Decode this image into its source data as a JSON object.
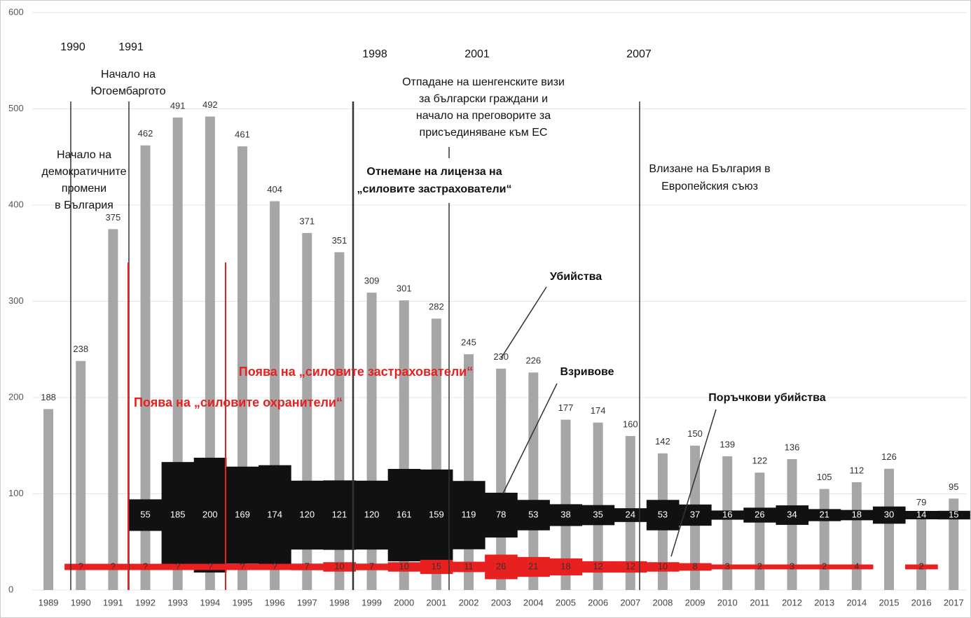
{
  "chart_data": {
    "type": "bar",
    "categories": [
      "1989",
      "1990",
      "1991",
      "1992",
      "1993",
      "1994",
      "1995",
      "1996",
      "1997",
      "1998",
      "1999",
      "2000",
      "2001",
      "2002",
      "2003",
      "2004",
      "2005",
      "2006",
      "2007",
      "2008",
      "2009",
      "2010",
      "2011",
      "2012",
      "2013",
      "2014",
      "2015",
      "2016",
      "2017"
    ],
    "series": [
      {
        "name": "Убийства",
        "color": "#a6a6a6",
        "values": [
          188,
          238,
          375,
          462,
          491,
          492,
          461,
          404,
          371,
          351,
          309,
          301,
          282,
          245,
          230,
          226,
          177,
          174,
          160,
          142,
          150,
          139,
          122,
          136,
          105,
          112,
          126,
          79,
          95
        ]
      },
      {
        "name": "Взривове",
        "color": "#111111",
        "values": [
          null,
          null,
          null,
          55,
          185,
          200,
          169,
          174,
          120,
          121,
          120,
          161,
          159,
          119,
          78,
          53,
          38,
          35,
          24,
          53,
          37,
          16,
          26,
          34,
          21,
          18,
          30,
          14,
          15
        ]
      },
      {
        "name": "Поръчкови убийства",
        "color": "#e8201f",
        "values": [
          null,
          null,
          null,
          null,
          null,
          null,
          null,
          null,
          7,
          10,
          7,
          10,
          15,
          11,
          26,
          21,
          18,
          12,
          12,
          10,
          8,
          3,
          2,
          3,
          2,
          4,
          null,
          2,
          null
        ],
        "value_labels": [
          null,
          "?",
          "?",
          "?",
          "?",
          "?",
          "?",
          "?",
          null,
          null,
          null,
          null,
          null,
          null,
          null,
          null,
          null,
          null,
          null,
          null,
          null,
          null,
          null,
          null,
          null,
          null,
          null,
          null,
          null
        ]
      }
    ],
    "ylim": [
      0,
      600
    ],
    "yticks": [
      0,
      100,
      200,
      300,
      400,
      500,
      600
    ],
    "grid": true,
    "annotations": [
      "1990",
      "1991",
      "1998",
      "2001",
      "2007",
      [
        "Начало на",
        "Югоембаргото"
      ],
      [
        "Начало на",
        "демократичните",
        "промени",
        "в България"
      ],
      [
        "Отпадане на шенгенските визи",
        "за български граждани и",
        "начало на преговорите за",
        "присъединяване към ЕС"
      ],
      [
        "Отнемане на лиценза на",
        "„силовите застрахователи“"
      ],
      [
        "Влизане на България в",
        "Европейския съюз"
      ],
      "Поява на „силовите застрахователи“",
      "Поява на „силовите охранители“"
    ]
  }
}
